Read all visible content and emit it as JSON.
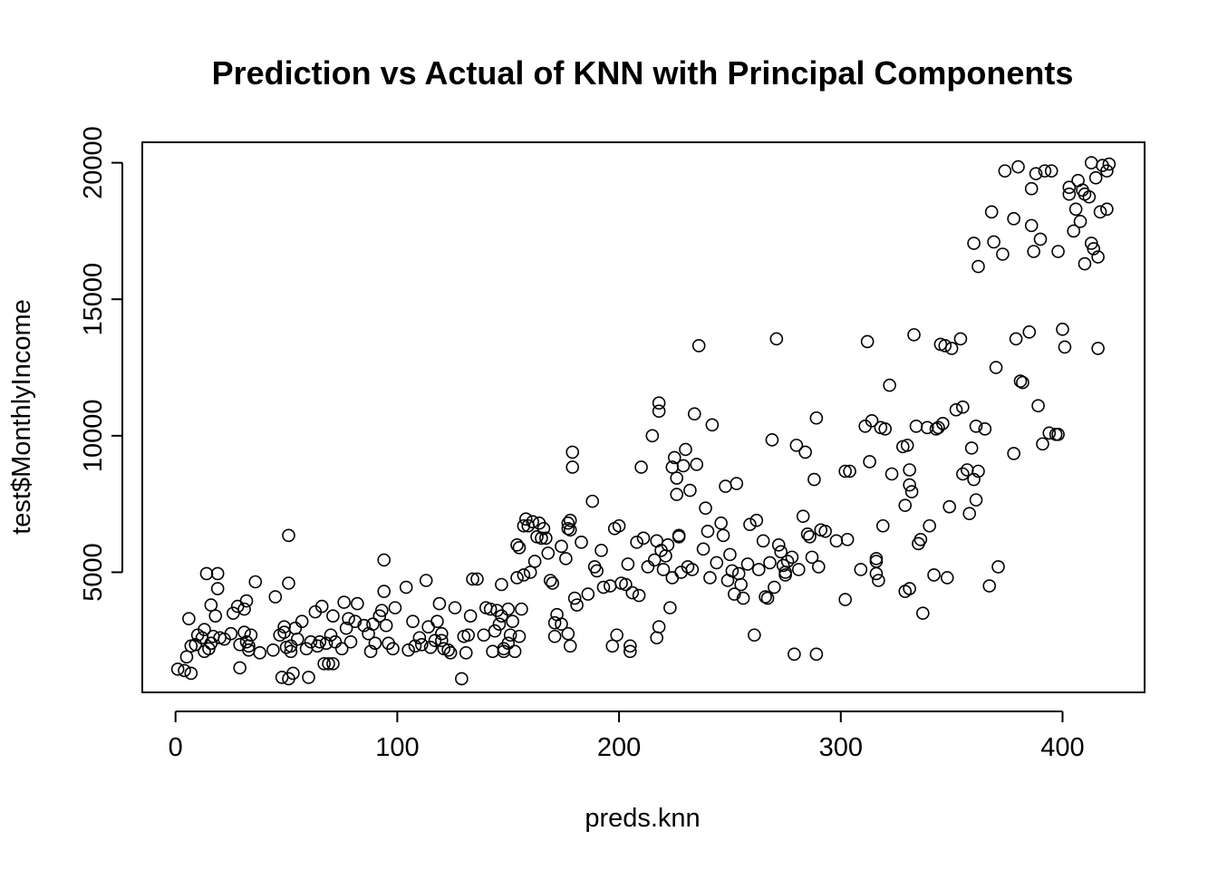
{
  "chart_data": {
    "type": "scatter",
    "title": "Prediction vs Actual of KNN with Principal Components",
    "xlabel": "preds.knn",
    "ylabel": "test$MonthlyIncome",
    "xlim": [
      -15,
      437
    ],
    "ylim": [
      600,
      20750
    ],
    "xticks": [
      0,
      100,
      200,
      300,
      400
    ],
    "yticks": [
      5000,
      10000,
      15000,
      20000
    ],
    "xtick_labels": [
      "0",
      "100",
      "200",
      "300",
      "400"
    ],
    "ytick_labels": [
      "5000",
      "10000",
      "15000",
      "20000"
    ],
    "grid": false,
    "points": [
      [
        1,
        1450
      ],
      [
        4,
        1400
      ],
      [
        5,
        1900
      ],
      [
        6,
        3300
      ],
      [
        7,
        2300
      ],
      [
        7,
        1300
      ],
      [
        9,
        2350
      ],
      [
        10,
        2700
      ],
      [
        12,
        2600
      ],
      [
        13,
        2900
      ],
      [
        13,
        2100
      ],
      [
        14,
        4950
      ],
      [
        15,
        2200
      ],
      [
        16,
        2400
      ],
      [
        16,
        3800
      ],
      [
        17,
        2650
      ],
      [
        18,
        3400
      ],
      [
        19,
        4950
      ],
      [
        19,
        4400
      ],
      [
        20,
        2600
      ],
      [
        22,
        2550
      ],
      [
        25,
        2750
      ],
      [
        26,
        3500
      ],
      [
        28,
        3750
      ],
      [
        29,
        1500
      ],
      [
        29,
        2350
      ],
      [
        31,
        3650
      ],
      [
        31,
        2800
      ],
      [
        32,
        3950
      ],
      [
        32,
        2450
      ],
      [
        33,
        2150
      ],
      [
        33,
        2300
      ],
      [
        34,
        2700
      ],
      [
        36,
        4650
      ],
      [
        38,
        2050
      ],
      [
        44,
        2150
      ],
      [
        45,
        4100
      ],
      [
        47,
        2700
      ],
      [
        48,
        1150
      ],
      [
        49,
        2800
      ],
      [
        49,
        3000
      ],
      [
        50,
        2250
      ],
      [
        51,
        1100
      ],
      [
        51,
        4600
      ],
      [
        51,
        6350
      ],
      [
        52,
        2100
      ],
      [
        52,
        2300
      ],
      [
        53,
        1300
      ],
      [
        54,
        2950
      ],
      [
        55,
        2550
      ],
      [
        57,
        3200
      ],
      [
        59,
        2200
      ],
      [
        60,
        1150
      ],
      [
        61,
        2450
      ],
      [
        63,
        3550
      ],
      [
        64,
        2300
      ],
      [
        65,
        2450
      ],
      [
        66,
        3750
      ],
      [
        67,
        1650
      ],
      [
        68,
        2400
      ],
      [
        69,
        1650
      ],
      [
        70,
        2700
      ],
      [
        71,
        3400
      ],
      [
        71,
        1650
      ],
      [
        72,
        2450
      ],
      [
        75,
        2200
      ],
      [
        76,
        3900
      ],
      [
        77,
        2950
      ],
      [
        78,
        3300
      ],
      [
        79,
        2450
      ],
      [
        81,
        3200
      ],
      [
        82,
        3850
      ],
      [
        85,
        3050
      ],
      [
        87,
        2750
      ],
      [
        88,
        2100
      ],
      [
        89,
        3100
      ],
      [
        90,
        2400
      ],
      [
        92,
        3400
      ],
      [
        93,
        3600
      ],
      [
        94,
        4300
      ],
      [
        94,
        5450
      ],
      [
        95,
        3050
      ],
      [
        96,
        2400
      ],
      [
        98,
        2200
      ],
      [
        99,
        3700
      ],
      [
        104,
        4450
      ],
      [
        105,
        2150
      ],
      [
        107,
        3200
      ],
      [
        108,
        2300
      ],
      [
        110,
        2600
      ],
      [
        111,
        2350
      ],
      [
        113,
        4700
      ],
      [
        114,
        3000
      ],
      [
        115,
        2250
      ],
      [
        117,
        2500
      ],
      [
        118,
        3200
      ],
      [
        119,
        3850
      ],
      [
        120,
        2500
      ],
      [
        120,
        2750
      ],
      [
        121,
        2200
      ],
      [
        123,
        2150
      ],
      [
        124,
        2050
      ],
      [
        126,
        3700
      ],
      [
        129,
        1100
      ],
      [
        130,
        2650
      ],
      [
        131,
        2050
      ],
      [
        132,
        2700
      ],
      [
        133,
        3400
      ],
      [
        134,
        4750
      ],
      [
        136,
        4750
      ],
      [
        139,
        2700
      ],
      [
        140,
        3700
      ],
      [
        142,
        3650
      ],
      [
        143,
        2100
      ],
      [
        144,
        2850
      ],
      [
        145,
        3600
      ],
      [
        146,
        3100
      ],
      [
        147,
        3400
      ],
      [
        147,
        4550
      ],
      [
        148,
        2100
      ],
      [
        148,
        2200
      ],
      [
        150,
        2400
      ],
      [
        150,
        3650
      ],
      [
        151,
        2700
      ],
      [
        152,
        3200
      ],
      [
        153,
        2100
      ],
      [
        154,
        6000
      ],
      [
        154,
        4800
      ],
      [
        155,
        5900
      ],
      [
        155,
        2650
      ],
      [
        156,
        3650
      ],
      [
        157,
        6700
      ],
      [
        157,
        4900
      ],
      [
        158,
        6950
      ],
      [
        159,
        6700
      ],
      [
        160,
        5000
      ],
      [
        161,
        6850
      ],
      [
        162,
        5400
      ],
      [
        163,
        6300
      ],
      [
        164,
        6800
      ],
      [
        165,
        6250
      ],
      [
        166,
        6600
      ],
      [
        167,
        6250
      ],
      [
        168,
        5700
      ],
      [
        169,
        4700
      ],
      [
        170,
        4600
      ],
      [
        171,
        2650
      ],
      [
        171,
        3150
      ],
      [
        172,
        3450
      ],
      [
        174,
        5950
      ],
      [
        174,
        3100
      ],
      [
        176,
        5500
      ],
      [
        177,
        6600
      ],
      [
        177,
        6800
      ],
      [
        177,
        2750
      ],
      [
        178,
        2300
      ],
      [
        178,
        6900
      ],
      [
        178,
        6550
      ],
      [
        179,
        9400
      ],
      [
        179,
        8850
      ],
      [
        180,
        4050
      ],
      [
        181,
        3800
      ],
      [
        183,
        6100
      ],
      [
        186,
        4200
      ],
      [
        188,
        7600
      ],
      [
        189,
        5200
      ],
      [
        190,
        5050
      ],
      [
        192,
        5800
      ],
      [
        193,
        4450
      ],
      [
        196,
        4500
      ],
      [
        197,
        2300
      ],
      [
        198,
        6600
      ],
      [
        199,
        2700
      ],
      [
        200,
        6700
      ],
      [
        201,
        4600
      ],
      [
        203,
        4550
      ],
      [
        204,
        5300
      ],
      [
        205,
        2300
      ],
      [
        205,
        2100
      ],
      [
        206,
        4250
      ],
      [
        208,
        6100
      ],
      [
        209,
        4150
      ],
      [
        210,
        8850
      ],
      [
        211,
        6250
      ],
      [
        213,
        5200
      ],
      [
        215,
        10000
      ],
      [
        216,
        5450
      ],
      [
        217,
        6150
      ],
      [
        217,
        2600
      ],
      [
        218,
        11200
      ],
      [
        218,
        10900
      ],
      [
        218,
        3000
      ],
      [
        219,
        5800
      ],
      [
        220,
        5100
      ],
      [
        221,
        5600
      ],
      [
        222,
        6000
      ],
      [
        223,
        3700
      ],
      [
        224,
        8850
      ],
      [
        224,
        4800
      ],
      [
        225,
        9200
      ],
      [
        226,
        8450
      ],
      [
        226,
        7850
      ],
      [
        227,
        6300
      ],
      [
        227,
        6350
      ],
      [
        228,
        5000
      ],
      [
        229,
        8900
      ],
      [
        230,
        9500
      ],
      [
        231,
        5200
      ],
      [
        232,
        8000
      ],
      [
        233,
        5100
      ],
      [
        234,
        10800
      ],
      [
        235,
        8950
      ],
      [
        236,
        13300
      ],
      [
        238,
        5850
      ],
      [
        239,
        7350
      ],
      [
        240,
        6500
      ],
      [
        241,
        4800
      ],
      [
        242,
        10400
      ],
      [
        244,
        5350
      ],
      [
        246,
        6800
      ],
      [
        247,
        6350
      ],
      [
        248,
        8150
      ],
      [
        249,
        4700
      ],
      [
        250,
        5650
      ],
      [
        251,
        5050
      ],
      [
        252,
        4200
      ],
      [
        253,
        8250
      ],
      [
        254,
        4950
      ],
      [
        255,
        4550
      ],
      [
        256,
        4050
      ],
      [
        258,
        5300
      ],
      [
        259,
        6750
      ],
      [
        261,
        2700
      ],
      [
        262,
        6900
      ],
      [
        263,
        5100
      ],
      [
        265,
        6150
      ],
      [
        266,
        4100
      ],
      [
        267,
        4050
      ],
      [
        268,
        5350
      ],
      [
        269,
        9850
      ],
      [
        270,
        4450
      ],
      [
        271,
        13550
      ],
      [
        272,
        6000
      ],
      [
        273,
        5750
      ],
      [
        274,
        5250
      ],
      [
        275,
        5000
      ],
      [
        275,
        4900
      ],
      [
        276,
        5400
      ],
      [
        278,
        5550
      ],
      [
        279,
        2000
      ],
      [
        280,
        9650
      ],
      [
        281,
        5100
      ],
      [
        283,
        7050
      ],
      [
        284,
        9400
      ],
      [
        285,
        6400
      ],
      [
        286,
        6300
      ],
      [
        287,
        5550
      ],
      [
        288,
        8400
      ],
      [
        289,
        10650
      ],
      [
        289,
        2000
      ],
      [
        290,
        5200
      ],
      [
        291,
        6550
      ],
      [
        293,
        6500
      ],
      [
        298,
        6150
      ],
      [
        302,
        8700
      ],
      [
        302,
        4000
      ],
      [
        303,
        6200
      ],
      [
        304,
        8700
      ],
      [
        309,
        5100
      ],
      [
        311,
        10350
      ],
      [
        312,
        13450
      ],
      [
        313,
        9050
      ],
      [
        314,
        10550
      ],
      [
        316,
        5500
      ],
      [
        316,
        5400
      ],
      [
        316,
        4950
      ],
      [
        317,
        4700
      ],
      [
        318,
        10300
      ],
      [
        319,
        6700
      ],
      [
        320,
        10250
      ],
      [
        322,
        11850
      ],
      [
        323,
        8600
      ],
      [
        328,
        9600
      ],
      [
        329,
        7450
      ],
      [
        329,
        4300
      ],
      [
        330,
        9650
      ],
      [
        331,
        8750
      ],
      [
        331,
        8200
      ],
      [
        331,
        4400
      ],
      [
        332,
        7950
      ],
      [
        333,
        13700
      ],
      [
        334,
        10350
      ],
      [
        335,
        6050
      ],
      [
        336,
        6200
      ],
      [
        337,
        3500
      ],
      [
        339,
        10300
      ],
      [
        340,
        6700
      ],
      [
        342,
        4900
      ],
      [
        343,
        10250
      ],
      [
        344,
        10300
      ],
      [
        345,
        13350
      ],
      [
        346,
        10450
      ],
      [
        347,
        13300
      ],
      [
        348,
        4800
      ],
      [
        349,
        7400
      ],
      [
        350,
        13200
      ],
      [
        352,
        10950
      ],
      [
        354,
        13550
      ],
      [
        355,
        11050
      ],
      [
        355,
        8600
      ],
      [
        357,
        8750
      ],
      [
        358,
        7150
      ],
      [
        359,
        9550
      ],
      [
        360,
        8400
      ],
      [
        360,
        17050
      ],
      [
        361,
        10350
      ],
      [
        361,
        7650
      ],
      [
        362,
        16200
      ],
      [
        362,
        8700
      ],
      [
        365,
        10250
      ],
      [
        367,
        4500
      ],
      [
        368,
        18200
      ],
      [
        369,
        17100
      ],
      [
        370,
        12500
      ],
      [
        371,
        5200
      ],
      [
        373,
        16650
      ],
      [
        374,
        19700
      ],
      [
        378,
        17950
      ],
      [
        378,
        9350
      ],
      [
        379,
        13550
      ],
      [
        380,
        19850
      ],
      [
        381,
        12000
      ],
      [
        382,
        11950
      ],
      [
        385,
        13800
      ],
      [
        386,
        19050
      ],
      [
        386,
        17700
      ],
      [
        387,
        16750
      ],
      [
        388,
        19600
      ],
      [
        389,
        11100
      ],
      [
        390,
        17200
      ],
      [
        391,
        9700
      ],
      [
        392,
        19700
      ],
      [
        394,
        10100
      ],
      [
        395,
        19700
      ],
      [
        397,
        10050
      ],
      [
        398,
        16750
      ],
      [
        398,
        10050
      ],
      [
        400,
        13900
      ],
      [
        401,
        13250
      ],
      [
        403,
        19100
      ],
      [
        403,
        18850
      ],
      [
        405,
        17500
      ],
      [
        406,
        18300
      ],
      [
        407,
        19350
      ],
      [
        408,
        17850
      ],
      [
        409,
        19000
      ],
      [
        410,
        16300
      ],
      [
        410,
        18850
      ],
      [
        412,
        18750
      ],
      [
        413,
        20000
      ],
      [
        413,
        17050
      ],
      [
        414,
        16850
      ],
      [
        415,
        19450
      ],
      [
        416,
        13200
      ],
      [
        416,
        16550
      ],
      [
        417,
        18200
      ],
      [
        418,
        19900
      ],
      [
        420,
        19700
      ],
      [
        420,
        18300
      ],
      [
        421,
        19950
      ]
    ]
  }
}
